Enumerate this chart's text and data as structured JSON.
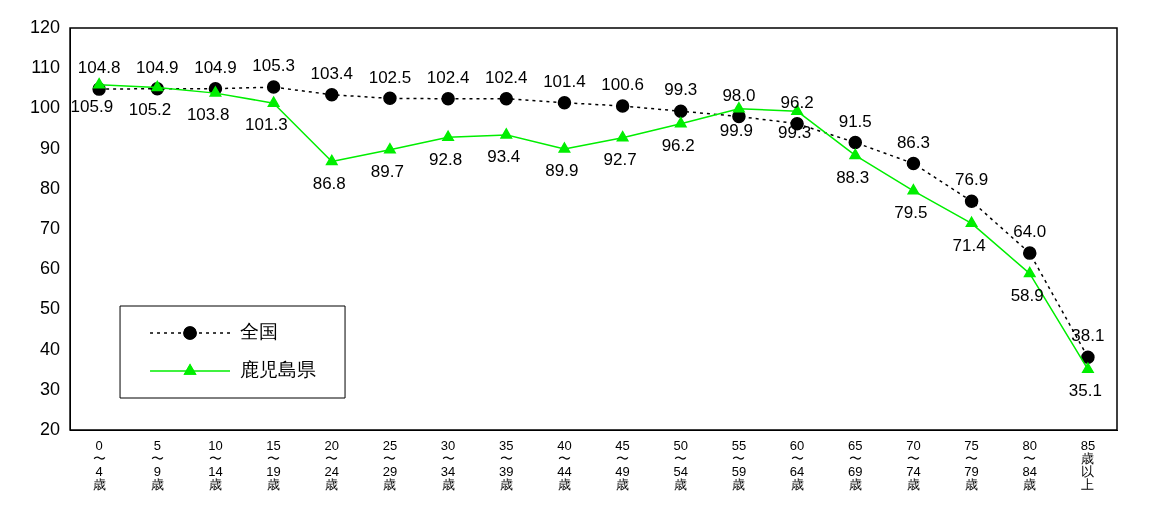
{
  "chart_data": {
    "type": "line",
    "categories": [
      "0〜4歳",
      "5〜9歳",
      "10〜14歳",
      "15〜19歳",
      "20〜24歳",
      "25〜29歳",
      "30〜34歳",
      "35〜39歳",
      "40〜44歳",
      "45〜49歳",
      "50〜54歳",
      "55〜59歳",
      "60〜64歳",
      "65〜69歳",
      "70〜74歳",
      "75〜79歳",
      "80〜84歳",
      "85歳以上"
    ],
    "series": [
      {
        "name": "全国",
        "color": "#000000",
        "marker": "circle",
        "line_style": "dotted",
        "values": [
          104.8,
          104.9,
          104.9,
          105.3,
          103.4,
          102.5,
          102.4,
          102.4,
          101.4,
          100.6,
          99.3,
          98.0,
          96.2,
          91.5,
          86.3,
          76.9,
          64.0,
          38.1
        ],
        "value_labels": [
          "104.8",
          "104.9",
          "104.9",
          "105.3",
          "103.4",
          "102.5",
          "102.4",
          "102.4",
          "101.4",
          "100.6",
          "99.3",
          "98.0",
          "96.2",
          "91.5",
          "86.3",
          "76.9",
          "64.0",
          "38.1"
        ]
      },
      {
        "name": "鹿児島県",
        "color": "#00ee00",
        "marker": "triangle",
        "line_style": "solid",
        "values": [
          105.9,
          105.2,
          103.8,
          101.3,
          86.8,
          89.7,
          92.8,
          93.4,
          89.9,
          92.7,
          96.2,
          99.9,
          99.3,
          88.3,
          79.5,
          71.4,
          58.9,
          35.1
        ],
        "value_labels": [
          "105.9",
          "105.2",
          "103.8",
          "101.3",
          "86.8",
          "89.7",
          "92.8",
          "93.4",
          "89.9",
          "92.7",
          "96.2",
          "99.9",
          "99.3",
          "88.3",
          "79.5",
          "71.4",
          "58.9",
          "35.1"
        ]
      }
    ],
    "ylim": [
      20,
      120
    ],
    "yticks": [
      20,
      30,
      40,
      50,
      60,
      70,
      80,
      90,
      100,
      110,
      120
    ],
    "grid": false,
    "legend": "bottom left"
  }
}
